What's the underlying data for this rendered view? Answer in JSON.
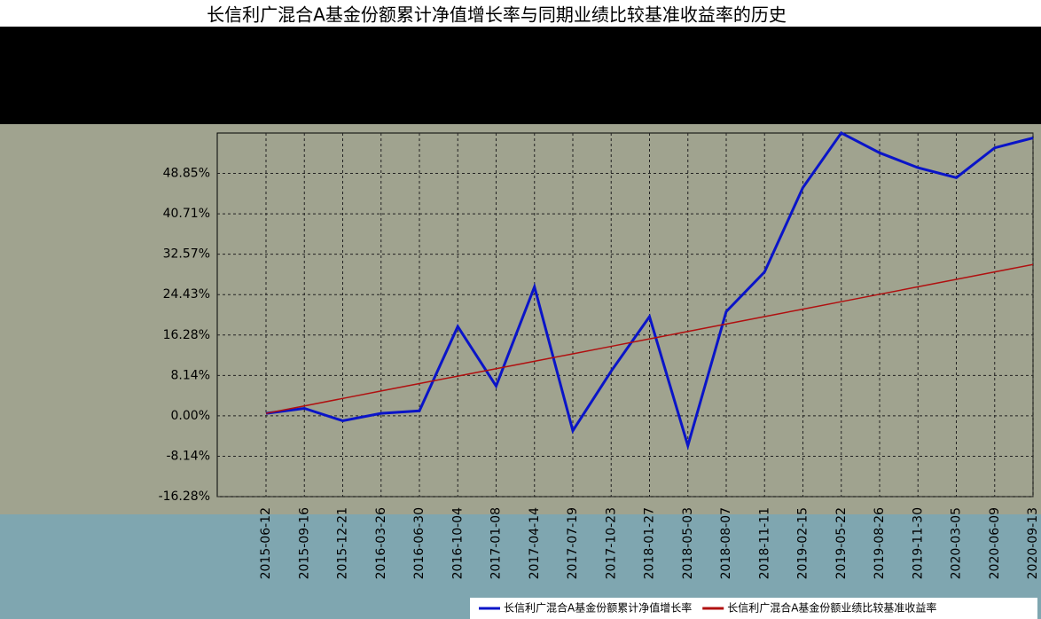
{
  "chart_data": {
    "type": "line",
    "title": "长信利广混合A基金份额累计净值增长率与同期业绩比较基准收益率的历史",
    "x": [
      "2015-06-12",
      "2015-09-16",
      "2015-12-21",
      "2016-03-26",
      "2016-06-30",
      "2016-10-04",
      "2017-01-08",
      "2017-04-14",
      "2017-07-19",
      "2017-10-23",
      "2018-01-27",
      "2018-05-03",
      "2018-08-07",
      "2018-11-11",
      "2019-02-15",
      "2019-05-22",
      "2019-08-26",
      "2019-11-30",
      "2020-03-05",
      "2020-06-09",
      "2020-09-13"
    ],
    "series": [
      {
        "name": "长信利广混合A基金份额累计净值增长率",
        "color": "#0a14c8",
        "values": [
          0.5,
          1.5,
          -1,
          0.5,
          1,
          18,
          6,
          26,
          -3,
          9,
          20,
          -6,
          21,
          29,
          46,
          57,
          53,
          50,
          48,
          54,
          56
        ]
      },
      {
        "name": "长信利广混合A基金份额业绩比较基准收益率",
        "color": "#b01010",
        "values": [
          0.5,
          2,
          3.5,
          5,
          6.5,
          8,
          9.5,
          11,
          12.5,
          14,
          15.5,
          17,
          18.5,
          20,
          21.5,
          23,
          24.5,
          26,
          27.5,
          29,
          30.5
        ]
      }
    ],
    "ylim": [
      -16.28,
      56.99
    ],
    "yticks": [
      {
        "value": -16.28,
        "label": "-16.28%"
      },
      {
        "value": -8.14,
        "label": "-8.14%"
      },
      {
        "value": 0,
        "label": "0.00%"
      },
      {
        "value": 8.14,
        "label": "8.14%"
      },
      {
        "value": 16.28,
        "label": "16.28%"
      },
      {
        "value": 24.43,
        "label": "24.43%"
      },
      {
        "value": 32.57,
        "label": "32.57%"
      },
      {
        "value": 40.71,
        "label": "40.71%"
      },
      {
        "value": 48.85,
        "label": "48.85%"
      }
    ],
    "grid": true
  }
}
